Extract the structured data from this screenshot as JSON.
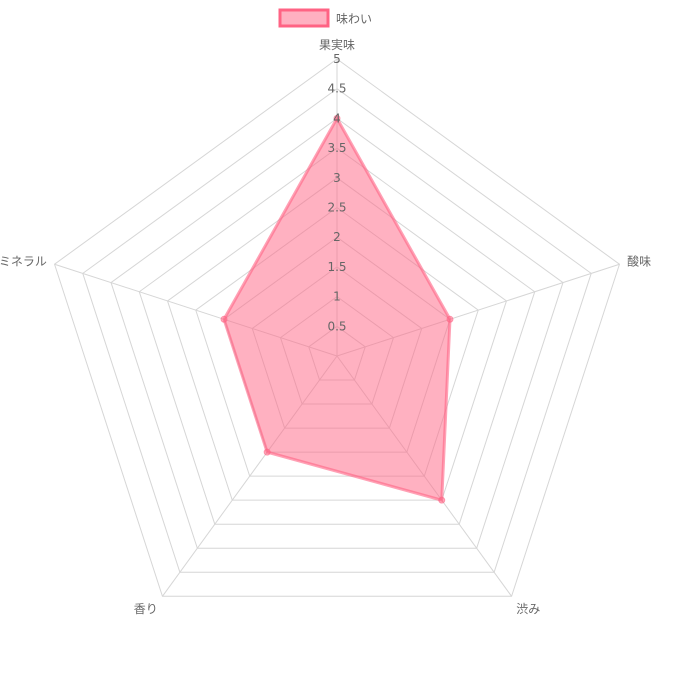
{
  "chart_data": {
    "type": "radar",
    "labels": [
      "果実味",
      "酸味",
      "渋み",
      "香り",
      "ミネラル"
    ],
    "series": [
      {
        "name": "味わい",
        "values": [
          4,
          2,
          3,
          2,
          2
        ]
      }
    ],
    "r_range": [
      0,
      5
    ],
    "ticks": [
      "0.5",
      "1",
      "1.5",
      "2",
      "2.5",
      "3",
      "3.5",
      "4",
      "4.5",
      "5"
    ],
    "legend_position": "top",
    "grid": true,
    "colors": {
      "fill": "#ffb0c1",
      "stroke": "#ff6384",
      "grid": "#d6d6d6",
      "text": "#666666"
    }
  }
}
